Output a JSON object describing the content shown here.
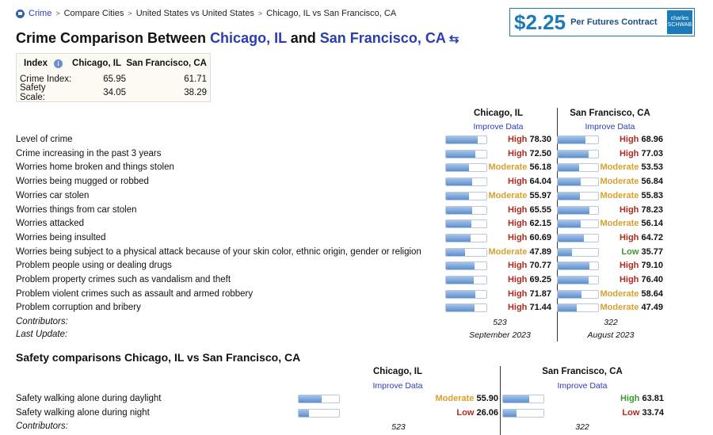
{
  "breadcrumb": [
    "Crime",
    "Compare Cities",
    "United States vs United States",
    "Chicago, IL vs San Francisco, CA"
  ],
  "title": {
    "prefix": "Crime Comparison Between ",
    "city1": "Chicago, IL",
    "mid": " and ",
    "city2": "San Francisco, CA",
    "swap": "⇆"
  },
  "ad": {
    "price": "$2.25",
    "text": "Per Futures Contract",
    "logo": "charles SCHWAB"
  },
  "index_table": {
    "headers": [
      "Index",
      "Chicago, IL",
      "San Francisco, CA"
    ],
    "rows": [
      {
        "label": "Crime Index:",
        "a": "65.95",
        "b": "61.71"
      },
      {
        "label": "Safety Scale:",
        "a": "34.05",
        "b": "38.29"
      }
    ]
  },
  "crime": {
    "city1": "Chicago, IL",
    "city2": "San Francisco, CA",
    "improve": "Improve Data",
    "rows": [
      {
        "label": "Level of crime",
        "a": {
          "level": "High",
          "value": "78.30",
          "pct": 78.3
        },
        "b": {
          "level": "High",
          "value": "68.96",
          "pct": 68.96
        }
      },
      {
        "label": "Crime increasing in the past 3 years",
        "a": {
          "level": "High",
          "value": "72.50",
          "pct": 72.5
        },
        "b": {
          "level": "High",
          "value": "77.03",
          "pct": 77.03
        }
      },
      {
        "label": "Worries home broken and things stolen",
        "a": {
          "level": "Moderate",
          "value": "56.18",
          "pct": 56.18
        },
        "b": {
          "level": "Moderate",
          "value": "53.53",
          "pct": 53.53
        }
      },
      {
        "label": "Worries being mugged or robbed",
        "a": {
          "level": "High",
          "value": "64.04",
          "pct": 64.04
        },
        "b": {
          "level": "Moderate",
          "value": "56.84",
          "pct": 56.84
        }
      },
      {
        "label": "Worries car stolen",
        "a": {
          "level": "Moderate",
          "value": "55.97",
          "pct": 55.97
        },
        "b": {
          "level": "Moderate",
          "value": "55.83",
          "pct": 55.83
        }
      },
      {
        "label": "Worries things from car stolen",
        "a": {
          "level": "High",
          "value": "65.55",
          "pct": 65.55
        },
        "b": {
          "level": "High",
          "value": "78.23",
          "pct": 78.23
        }
      },
      {
        "label": "Worries attacked",
        "a": {
          "level": "High",
          "value": "62.15",
          "pct": 62.15
        },
        "b": {
          "level": "Moderate",
          "value": "56.14",
          "pct": 56.14
        }
      },
      {
        "label": "Worries being insulted",
        "a": {
          "level": "High",
          "value": "60.69",
          "pct": 60.69
        },
        "b": {
          "level": "High",
          "value": "64.72",
          "pct": 64.72
        }
      },
      {
        "label": "Worries being subject to a physical attack because of your skin color, ethnic origin, gender or religion",
        "a": {
          "level": "Moderate",
          "value": "47.89",
          "pct": 47.89
        },
        "b": {
          "level": "Low",
          "value": "35.77",
          "pct": 35.77
        }
      },
      {
        "label": "Problem people using or dealing drugs",
        "a": {
          "level": "High",
          "value": "70.77",
          "pct": 70.77
        },
        "b": {
          "level": "High",
          "value": "79.10",
          "pct": 79.1
        }
      },
      {
        "label": "Problem property crimes such as vandalism and theft",
        "a": {
          "level": "High",
          "value": "69.25",
          "pct": 69.25
        },
        "b": {
          "level": "High",
          "value": "76.40",
          "pct": 76.4
        }
      },
      {
        "label": "Problem violent crimes such as assault and armed robbery",
        "a": {
          "level": "High",
          "value": "71.87",
          "pct": 71.87
        },
        "b": {
          "level": "Moderate",
          "value": "58.64",
          "pct": 58.64
        }
      },
      {
        "label": "Problem corruption and bribery",
        "a": {
          "level": "High",
          "value": "71.44",
          "pct": 71.44
        },
        "b": {
          "level": "Moderate",
          "value": "47.49",
          "pct": 47.49
        }
      }
    ],
    "contributors_label": "Contributors:",
    "contributors": {
      "a": "523",
      "b": "322"
    },
    "update_label": "Last Update:",
    "update": {
      "a": "September 2023",
      "b": "August 2023"
    }
  },
  "safety": {
    "title": "Safety comparisons Chicago, IL vs San Francisco, CA",
    "city1": "Chicago, IL",
    "city2": "San Francisco, CA",
    "improve": "Improve Data",
    "rows": [
      {
        "label": "Safety walking alone during daylight",
        "a": {
          "level": "Moderate",
          "value": "55.90",
          "pct": 55.9
        },
        "b": {
          "level": "High",
          "value": "63.81",
          "pct": 63.81
        }
      },
      {
        "label": "Safety walking alone during night",
        "a": {
          "level": "Low",
          "value": "26.06",
          "pct": 26.06
        },
        "b": {
          "level": "Low",
          "value": "33.74",
          "pct": 33.74
        }
      }
    ],
    "contributors_label": "Contributors:",
    "contributors": {
      "a": "523",
      "b": "322"
    }
  },
  "colors": {
    "link": "#2b3cb4",
    "high": "#b02a1f",
    "moderate": "#d7a12e",
    "low_green": "#3c9a2d"
  }
}
